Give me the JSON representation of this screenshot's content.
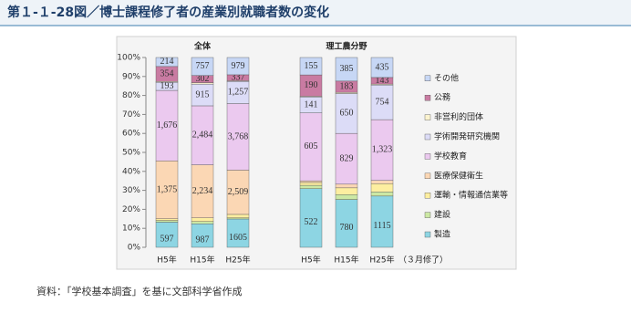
{
  "page_title": "第１-１-28図／博士課程修了者の産業別就職者数の変化",
  "source": "資料：「学校基本調査」を基に文部科学省作成",
  "chart_data": {
    "type": "bar",
    "stacking": "percent",
    "groups": [
      "全体",
      "理工農分野"
    ],
    "categories": [
      "H5年",
      "H15年",
      "H25年",
      "H5年",
      "H15年",
      "H25年"
    ],
    "x_note": "（３月修了）",
    "ylim": [
      0,
      100
    ],
    "yticks": [
      {
        "value": 0,
        "label": "0%"
      },
      {
        "value": 10,
        "label": "10%"
      },
      {
        "value": 20,
        "label": "20%"
      },
      {
        "value": 30,
        "label": "30%"
      },
      {
        "value": 40,
        "label": "40%"
      },
      {
        "value": 50,
        "label": "50%"
      },
      {
        "value": 60,
        "label": "60%"
      },
      {
        "value": 70,
        "label": "70%"
      },
      {
        "value": 80,
        "label": "80%"
      },
      {
        "value": 90,
        "label": "90%"
      },
      {
        "value": 100,
        "label": "100%"
      }
    ],
    "series": [
      {
        "name": "製造",
        "color": "#8dd5e3",
        "values": [
          597,
          987,
          1605,
          522,
          780,
          1115
        ]
      },
      {
        "name": "建設",
        "color": "#cce8a4",
        "values": [
          40,
          100,
          60,
          30,
          80,
          90
        ],
        "value_labels": [
          null,
          null,
          null,
          null,
          null,
          null
        ]
      },
      {
        "name": "運輸・情報通信業等",
        "color": "#fdeea0",
        "values": [
          40,
          150,
          200,
          25,
          110,
          180
        ],
        "value_labels": [
          null,
          null,
          null,
          null,
          null,
          null
        ]
      },
      {
        "name": "医療保健衛生",
        "color": "#fbd7b4",
        "values": [
          1375,
          2234,
          2509,
          15,
          60,
          70
        ],
        "value_labels": [
          "1,375",
          "2,234",
          "2,509",
          null,
          null,
          null
        ]
      },
      {
        "name": "学校教育",
        "color": "#ebc9ef",
        "values": [
          1676,
          2484,
          3768,
          605,
          829,
          1323
        ],
        "value_labels": [
          "1,676",
          "2,484",
          "3,768",
          "605",
          "829",
          "1,323"
        ]
      },
      {
        "name": "学術開発研究機関",
        "color": "#dcdcf7",
        "values": [
          193,
          915,
          1257,
          141,
          650,
          754
        ],
        "value_labels": [
          "193",
          "915",
          "1,257",
          "141",
          "650",
          "754"
        ]
      },
      {
        "name": "非営利的団体",
        "color": "#fbf3cf",
        "values": [
          20,
          60,
          40,
          7,
          20,
          20
        ],
        "value_labels": [
          null,
          null,
          null,
          null,
          null,
          null
        ]
      },
      {
        "name": "公務",
        "color": "#c97ba2",
        "values": [
          354,
          302,
          337,
          190,
          183,
          143
        ]
      },
      {
        "name": "その他",
        "color": "#c7d7f5",
        "values": [
          214,
          757,
          979,
          155,
          385,
          435
        ]
      }
    ]
  }
}
